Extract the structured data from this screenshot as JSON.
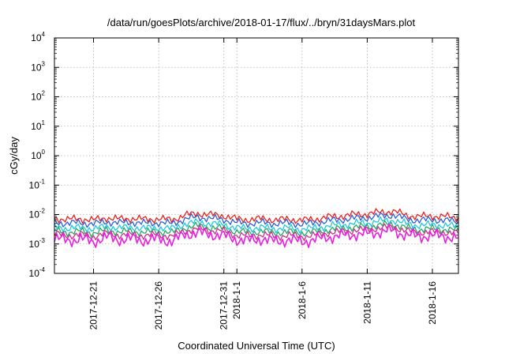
{
  "chart_data": {
    "type": "line",
    "title": "/data/run/goesPlots/archive/2018-01-17/flux/../bryn/31daysMars.plot",
    "xlabel": "Coordinated Universal Time (UTC)",
    "ylabel": "cGy/day",
    "yscale": "log",
    "grid": true,
    "xlim": [
      "2017-12-18",
      "2018-01-18"
    ],
    "ylim": [
      0.0001,
      10000
    ],
    "x_ticks": [
      "2017-12-21",
      "2017-12-26",
      "2017-12-31",
      "2018-1-1",
      "2018-1-6",
      "2018-1-11",
      "2018-1-16"
    ],
    "y_ticks": [
      {
        "base": "10",
        "exp": "-4"
      },
      {
        "base": "10",
        "exp": "-3"
      },
      {
        "base": "10",
        "exp": "-2"
      },
      {
        "base": "10",
        "exp": "-1"
      },
      {
        "base": "10",
        "exp": "0"
      },
      {
        "base": "10",
        "exp": "1"
      },
      {
        "base": "10",
        "exp": "2"
      },
      {
        "base": "10",
        "exp": "3"
      },
      {
        "base": "10",
        "exp": "4"
      }
    ],
    "x": [
      "2017-12-18",
      "2017-12-19",
      "2017-12-20",
      "2017-12-21",
      "2017-12-22",
      "2017-12-23",
      "2017-12-24",
      "2017-12-25",
      "2017-12-26",
      "2017-12-27",
      "2017-12-28",
      "2017-12-29",
      "2017-12-30",
      "2017-12-31",
      "2018-01-01",
      "2018-01-02",
      "2018-01-03",
      "2018-01-04",
      "2018-01-05",
      "2018-01-06",
      "2018-01-07",
      "2018-01-08",
      "2018-01-09",
      "2018-01-10",
      "2018-01-11",
      "2018-01-12",
      "2018-01-13",
      "2018-01-14",
      "2018-01-15",
      "2018-01-16",
      "2018-01-17",
      "2018-01-18"
    ],
    "series": [
      {
        "color": "#e8231f",
        "values": [
          0.0075,
          0.0068,
          0.0072,
          0.0065,
          0.0078,
          0.007,
          0.0074,
          0.0068,
          0.0072,
          0.0066,
          0.0095,
          0.011,
          0.0098,
          0.0092,
          0.007,
          0.0068,
          0.0072,
          0.0066,
          0.007,
          0.0064,
          0.007,
          0.0082,
          0.009,
          0.01,
          0.0105,
          0.012,
          0.013,
          0.0095,
          0.0085,
          0.009,
          0.0085,
          0.0078
        ]
      },
      {
        "color": "#2f5fd6",
        "values": [
          0.0055,
          0.005,
          0.0053,
          0.0048,
          0.0057,
          0.0052,
          0.0055,
          0.005,
          0.0053,
          0.0049,
          0.007,
          0.0082,
          0.0073,
          0.0068,
          0.0052,
          0.005,
          0.0053,
          0.0049,
          0.0052,
          0.0047,
          0.0052,
          0.0061,
          0.0067,
          0.0074,
          0.0078,
          0.0089,
          0.0096,
          0.007,
          0.0063,
          0.0067,
          0.0063,
          0.0058
        ]
      },
      {
        "color": "#22c7e0",
        "values": [
          0.0038,
          0.0034,
          0.0036,
          0.0033,
          0.0039,
          0.0035,
          0.0037,
          0.0034,
          0.0036,
          0.0033,
          0.0048,
          0.0055,
          0.0049,
          0.0046,
          0.0035,
          0.0034,
          0.0036,
          0.0033,
          0.0035,
          0.0032,
          0.0035,
          0.0041,
          0.0045,
          0.005,
          0.0052,
          0.006,
          0.0065,
          0.0048,
          0.0043,
          0.0045,
          0.0043,
          0.0039
        ]
      },
      {
        "color": "#2aa86a",
        "values": [
          0.0028,
          0.0025,
          0.0027,
          0.0024,
          0.0029,
          0.0026,
          0.0027,
          0.0025,
          0.0027,
          0.0024,
          0.0035,
          0.0041,
          0.0036,
          0.0034,
          0.0026,
          0.0025,
          0.0027,
          0.0024,
          0.0026,
          0.0024,
          0.0026,
          0.003,
          0.0033,
          0.0037,
          0.0039,
          0.0044,
          0.0048,
          0.0035,
          0.0031,
          0.0033,
          0.0031,
          0.0029
        ]
      },
      {
        "color": "#c8348a",
        "values": [
          0.0022,
          0.0019,
          0.0021,
          0.0018,
          0.0023,
          0.002,
          0.0021,
          0.0019,
          0.0021,
          0.0018,
          0.0028,
          0.0032,
          0.0029,
          0.0027,
          0.002,
          0.0019,
          0.0021,
          0.0018,
          0.002,
          0.0018,
          0.002,
          0.0024,
          0.0026,
          0.0029,
          0.0031,
          0.0035,
          0.0038,
          0.0028,
          0.0025,
          0.0026,
          0.0025,
          0.0023
        ]
      },
      {
        "color": "#e81ee0",
        "values": [
          0.0016,
          0.0013,
          0.0015,
          0.0012,
          0.0017,
          0.0014,
          0.0015,
          0.0013,
          0.0015,
          0.0012,
          0.0021,
          0.0024,
          0.0021,
          0.0019,
          0.0014,
          0.0013,
          0.0015,
          0.0012,
          0.0014,
          0.0012,
          0.0014,
          0.0017,
          0.0019,
          0.0021,
          0.0022,
          0.0026,
          0.0028,
          0.002,
          0.0018,
          0.0019,
          0.0018,
          0.0016
        ]
      }
    ]
  }
}
